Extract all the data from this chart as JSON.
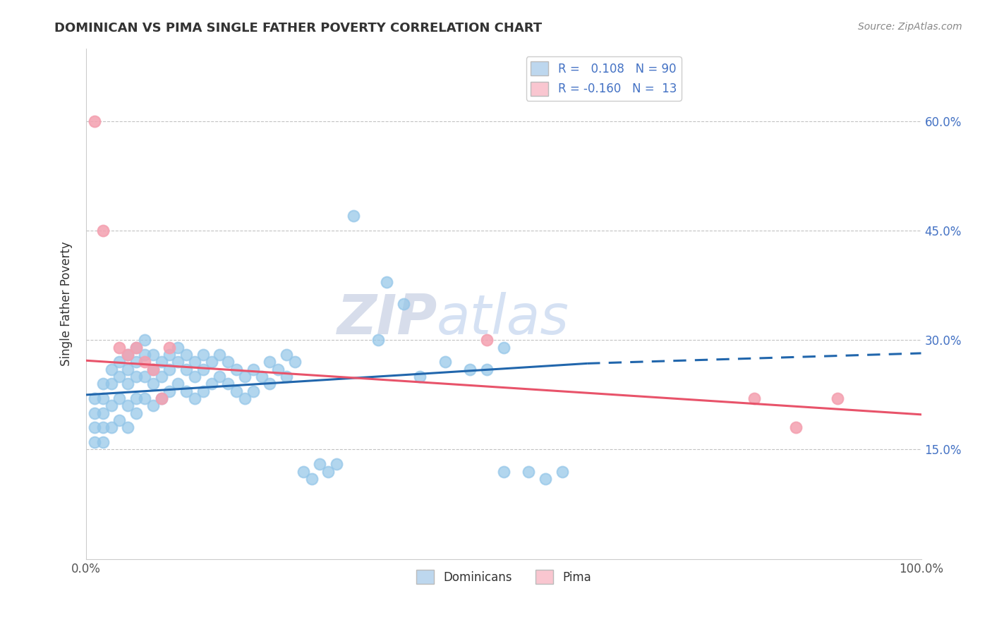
{
  "title": "DOMINICAN VS PIMA SINGLE FATHER POVERTY CORRELATION CHART",
  "source": "Source: ZipAtlas.com",
  "ylabel": "Single Father Poverty",
  "xlim": [
    0.0,
    1.0
  ],
  "ylim": [
    0.0,
    0.7
  ],
  "yticks": [
    0.15,
    0.3,
    0.45,
    0.6
  ],
  "ytick_labels": [
    "15.0%",
    "30.0%",
    "45.0%",
    "60.0%"
  ],
  "dominicans_color": "#92C5E8",
  "pima_color": "#F4A0B0",
  "dominicans_line_color": "#2166AC",
  "pima_line_color": "#E8536A",
  "legend_box_dominicans": "#BDD7EE",
  "legend_box_pima": "#F9C6D0",
  "R_dominicans": 0.108,
  "N_dominicans": 90,
  "R_pima": -0.16,
  "N_pima": 13,
  "watermark_zip": "ZIP",
  "watermark_atlas": "atlas",
  "dom_line_x_solid_end": 0.6,
  "dominicans_x": [
    0.01,
    0.01,
    0.01,
    0.01,
    0.02,
    0.02,
    0.02,
    0.02,
    0.02,
    0.03,
    0.03,
    0.03,
    0.03,
    0.04,
    0.04,
    0.04,
    0.04,
    0.05,
    0.05,
    0.05,
    0.05,
    0.05,
    0.06,
    0.06,
    0.06,
    0.06,
    0.06,
    0.07,
    0.07,
    0.07,
    0.07,
    0.08,
    0.08,
    0.08,
    0.08,
    0.09,
    0.09,
    0.09,
    0.1,
    0.1,
    0.1,
    0.11,
    0.11,
    0.11,
    0.12,
    0.12,
    0.12,
    0.13,
    0.13,
    0.13,
    0.14,
    0.14,
    0.14,
    0.15,
    0.15,
    0.16,
    0.16,
    0.17,
    0.17,
    0.18,
    0.18,
    0.19,
    0.19,
    0.2,
    0.2,
    0.21,
    0.22,
    0.22,
    0.23,
    0.24,
    0.24,
    0.25,
    0.26,
    0.27,
    0.28,
    0.29,
    0.3,
    0.32,
    0.35,
    0.38,
    0.4,
    0.43,
    0.46,
    0.5,
    0.53,
    0.55,
    0.57,
    0.5,
    0.48,
    0.36
  ],
  "dominicans_y": [
    0.22,
    0.2,
    0.18,
    0.16,
    0.24,
    0.22,
    0.2,
    0.18,
    0.16,
    0.26,
    0.24,
    0.21,
    0.18,
    0.27,
    0.25,
    0.22,
    0.19,
    0.28,
    0.26,
    0.24,
    0.21,
    0.18,
    0.29,
    0.27,
    0.25,
    0.22,
    0.2,
    0.3,
    0.28,
    0.25,
    0.22,
    0.28,
    0.26,
    0.24,
    0.21,
    0.27,
    0.25,
    0.22,
    0.28,
    0.26,
    0.23,
    0.29,
    0.27,
    0.24,
    0.28,
    0.26,
    0.23,
    0.27,
    0.25,
    0.22,
    0.28,
    0.26,
    0.23,
    0.27,
    0.24,
    0.28,
    0.25,
    0.27,
    0.24,
    0.26,
    0.23,
    0.25,
    0.22,
    0.26,
    0.23,
    0.25,
    0.27,
    0.24,
    0.26,
    0.28,
    0.25,
    0.27,
    0.12,
    0.11,
    0.13,
    0.12,
    0.13,
    0.47,
    0.3,
    0.35,
    0.25,
    0.27,
    0.26,
    0.12,
    0.12,
    0.11,
    0.12,
    0.29,
    0.26,
    0.38
  ],
  "pima_x": [
    0.01,
    0.02,
    0.04,
    0.05,
    0.06,
    0.07,
    0.08,
    0.09,
    0.1,
    0.8,
    0.85,
    0.9,
    0.48
  ],
  "pima_y": [
    0.6,
    0.45,
    0.29,
    0.28,
    0.29,
    0.27,
    0.26,
    0.22,
    0.29,
    0.22,
    0.18,
    0.22,
    0.3
  ]
}
